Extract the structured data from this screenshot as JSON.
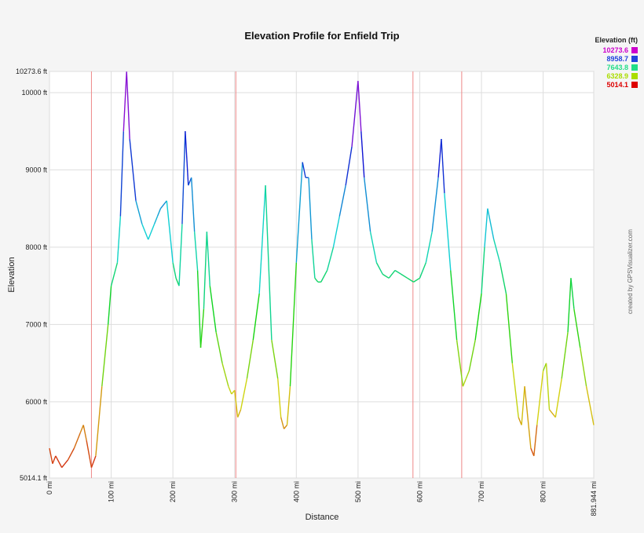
{
  "chart_data": {
    "type": "line",
    "title": "Elevation Profile for Enfield Trip",
    "xlabel": "Distance",
    "ylabel": "Elevation",
    "xlim": [
      0,
      881.944
    ],
    "ylim": [
      5014.1,
      10273.6
    ],
    "x_ticks": [
      "0 mi",
      "100 mi",
      "200 mi",
      "300 mi",
      "400 mi",
      "500 mi",
      "600 mi",
      "700 mi",
      "800 mi",
      "881.944 mi"
    ],
    "y_ticks": [
      "5014.1 ft",
      "6000 ft",
      "7000 ft",
      "8000 ft",
      "9000 ft",
      "10000 ft",
      "10273.6 ft"
    ],
    "grid": true,
    "legend_title": "Elevation (ft)",
    "legend": [
      {
        "label": "10273.6",
        "color": "#cc00cc"
      },
      {
        "label": "8958.7",
        "color": "#2244dd"
      },
      {
        "label": "7643.8",
        "color": "#22dd88"
      },
      {
        "label": "6328.9",
        "color": "#aadd00"
      },
      {
        "label": "5014.1",
        "color": "#dd0000"
      }
    ],
    "markers_x": [
      68,
      302,
      589,
      668
    ],
    "x": [
      0,
      5,
      10,
      20,
      30,
      40,
      50,
      55,
      60,
      68,
      75,
      85,
      95,
      100,
      110,
      115,
      120,
      125,
      130,
      140,
      150,
      160,
      170,
      175,
      180,
      190,
      200,
      205,
      210,
      215,
      220,
      225,
      230,
      235,
      240,
      245,
      250,
      255,
      260,
      270,
      280,
      290,
      295,
      300,
      305,
      310,
      320,
      330,
      340,
      350,
      360,
      370,
      375,
      380,
      385,
      390,
      400,
      410,
      415,
      420,
      425,
      430,
      435,
      440,
      450,
      460,
      470,
      480,
      490,
      500,
      505,
      510,
      520,
      530,
      540,
      550,
      560,
      570,
      580,
      590,
      600,
      610,
      620,
      630,
      635,
      640,
      650,
      660,
      670,
      675,
      680,
      690,
      700,
      705,
      710,
      720,
      730,
      740,
      750,
      760,
      765,
      770,
      780,
      785,
      790,
      800,
      805,
      810,
      820,
      830,
      840,
      845,
      850,
      860,
      870,
      881.944
    ],
    "values": [
      5400,
      5200,
      5300,
      5150,
      5250,
      5400,
      5600,
      5700,
      5500,
      5150,
      5300,
      6200,
      7000,
      7500,
      7800,
      8400,
      9500,
      10270,
      9400,
      8600,
      8300,
      8100,
      8300,
      8400,
      8500,
      8600,
      7800,
      7600,
      7500,
      8300,
      9500,
      8800,
      8900,
      8200,
      7700,
      6700,
      7200,
      8200,
      7500,
      6900,
      6500,
      6200,
      6100,
      6150,
      5800,
      5900,
      6300,
      6800,
      7400,
      8800,
      6800,
      6300,
      5800,
      5650,
      5700,
      6200,
      7800,
      9100,
      8900,
      8900,
      8100,
      7600,
      7550,
      7550,
      7700,
      8000,
      8400,
      8800,
      9300,
      10150,
      9500,
      8900,
      8200,
      7800,
      7650,
      7600,
      7700,
      7650,
      7600,
      7550,
      7600,
      7800,
      8200,
      8900,
      9400,
      8700,
      7700,
      6800,
      6200,
      6300,
      6400,
      6800,
      7400,
      8000,
      8500,
      8100,
      7800,
      7400,
      6500,
      5800,
      5700,
      6200,
      5400,
      5300,
      5700,
      6400,
      6500,
      5900,
      5800,
      6300,
      6900,
      7600,
      7200,
      6700,
      6200,
      5700
    ]
  },
  "legend": {
    "title": "Elevation (ft)",
    "items": [
      "10273.6",
      "8958.7",
      "7643.8",
      "6328.9",
      "5014.1"
    ]
  },
  "credit": "created by GPSVisualizer.com"
}
